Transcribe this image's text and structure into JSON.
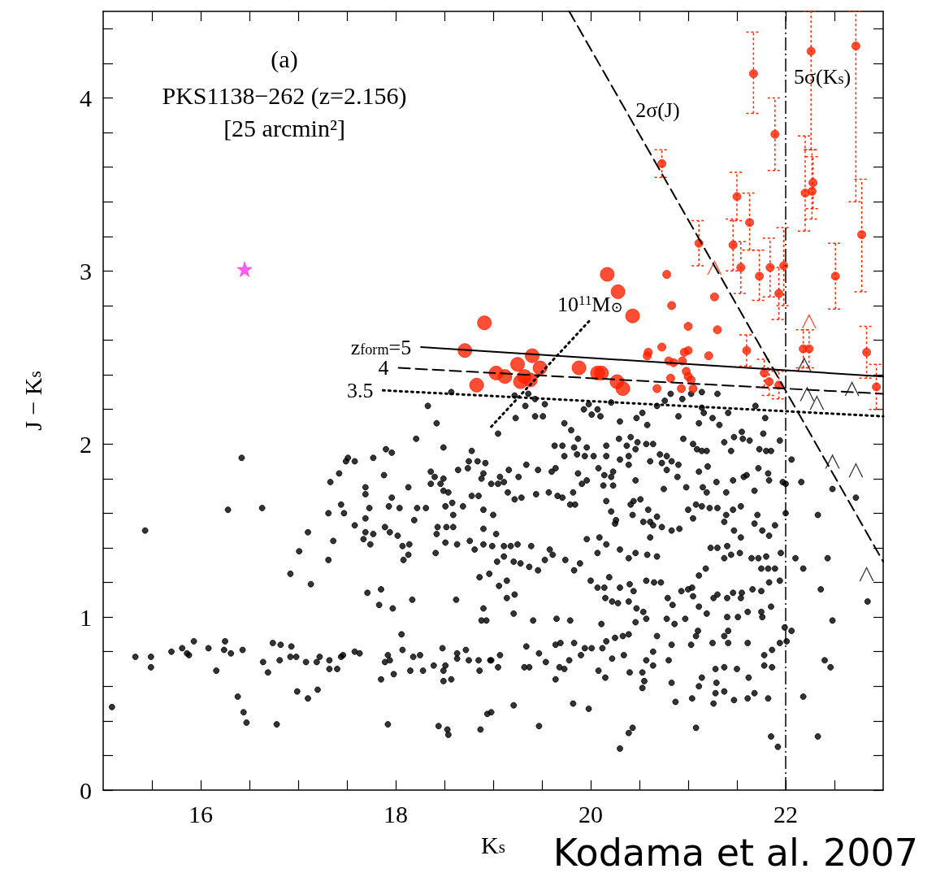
{
  "chart_data": {
    "type": "scatter",
    "title": "(a)",
    "subtitle": "PKS1138−262 (z=2.156)\n[25 arcmin²]",
    "xlabel": "K$_{s}$",
    "ylabel": "J − K$_{s}$",
    "xlim": [
      15,
      23
    ],
    "xticks": [
      {
        "value": 15.5,
        "label": null
      },
      16,
      {
        "value": 16.5,
        "label": null
      },
      {
        "value": 17,
        "label": null
      },
      {
        "value": 17.5,
        "label": null
      },
      18,
      {
        "value": 18.5,
        "label": null
      },
      {
        "value": 19,
        "label": null
      },
      {
        "value": 19.5,
        "label": null
      },
      20,
      {
        "value": 20.5,
        "label": null
      },
      {
        "value": 21,
        "label": null
      },
      {
        "value": 21.5,
        "label": null
      },
      22,
      {
        "value": 22.5,
        "label": null
      }
    ],
    "ylim": [
      0,
      4.5
    ],
    "yticks": [
      0,
      {
        "value": 0.2,
        "label": null
      },
      {
        "value": 0.4,
        "label": null
      },
      {
        "value": 0.6,
        "label": null
      },
      {
        "value": 0.8,
        "label": null
      },
      1,
      {
        "value": 1.2,
        "label": null
      },
      {
        "value": 1.4,
        "label": null
      },
      {
        "value": 1.6,
        "label": null
      },
      {
        "value": 1.8,
        "label": null
      },
      2,
      {
        "value": 2.2,
        "label": null
      },
      {
        "value": 2.4,
        "label": null
      },
      {
        "value": 2.6,
        "label": null
      },
      {
        "value": 2.8,
        "label": null
      },
      3,
      {
        "value": 3.2,
        "label": null
      },
      {
        "value": 3.4,
        "label": null
      },
      {
        "value": 3.6,
        "label": null
      },
      {
        "value": 3.8,
        "label": null
      },
      4,
      {
        "value": 4.2,
        "label": null
      },
      {
        "value": 4.4,
        "label": null
      }
    ],
    "grid": false,
    "legend": false,
    "series": [
      {
        "marker": "circle",
        "color": "#000000",
        "x": [
          16.42,
          16.28,
          16.63,
          15.43,
          17.1,
          17.01,
          16.92,
          17.13,
          17.36,
          17.31,
          17.33,
          17.42,
          17.49,
          17.58,
          17.51,
          17.77,
          17.9,
          17.96,
          17.88,
          17.69,
          17.69,
          17.44,
          17.47,
          17.31,
          17.69,
          17.73,
          17.58,
          17.69,
          17.77,
          17.67,
          17.74,
          17.89,
          17.94,
          18.02,
          17.96,
          17.93,
          18.04,
          18.22,
          18.31,
          18.13,
          18.19,
          18.14,
          18.07,
          18.13,
          18.08,
          18.41,
          18.36,
          18.4,
          18.49,
          18.36,
          18.46,
          18.49,
          18.54,
          18.49,
          18.78,
          18.75,
          18.84,
          18.92,
          18.64,
          18.74,
          18.9,
          18.88,
          18.78,
          18.85,
          18.51,
          18.58,
          18.69,
          18.59,
          18.43,
          18.52,
          18.59,
          18.42,
          18.51,
          18.63,
          18.76,
          18.81,
          18.9,
          18.9,
          18.9,
          18.86,
          17.83,
          17.97,
          17.71,
          17.85,
          18.17,
          18.62,
          18.9,
          18.88,
          18.93,
          18.06,
          15.33,
          15.49,
          15.49,
          15.7,
          15.81,
          15.86,
          15.88,
          15.93,
          16.08,
          16.25,
          16.24,
          16.31,
          16.43,
          16.16,
          16.74,
          16.82,
          16.93,
          16.64,
          16.81,
          16.69,
          16.92,
          16.98,
          17.08,
          17.19,
          17.22,
          17.32,
          17.44,
          17.46,
          17.32,
          17.4,
          17.58,
          17.63,
          17.92,
          17.94,
          17.89,
          18.07,
          18.18,
          18.25,
          17.85,
          17.98,
          18.15,
          18.28,
          18.39,
          18.51,
          18.49,
          18.48,
          18.63,
          18.72,
          18.63,
          18.75,
          18.85,
          18.97,
          18.86,
          18.49,
          18.57,
          16.38,
          16.44,
          16.47,
          16.78,
          15.09,
          16.99,
          17.1,
          17.2,
          17.92,
          18.44,
          18.53,
          18.54,
          18.87,
          18.94,
          18.33,
          18.42,
          18.21,
          18.57,
          19.22,
          19.36,
          19.43,
          19.33,
          19.53,
          19.23,
          19.43,
          19.51,
          19.05,
          19.98,
          19.93,
          20.01,
          20.07,
          20.1,
          20.21,
          20.3,
          20.47,
          20.53,
          20.58,
          20.68,
          20.82,
          20.76,
          20.94,
          21.03,
          21.14,
          21.3,
          21.14,
          21.16,
          21.41,
          20.9,
          21.11,
          21.25,
          21.32,
          21.69,
          21.79,
          21.77,
          21.94,
          21.47,
          21.55,
          21.56,
          21.63,
          21.37,
          19.73,
          19.8,
          19.63,
          19.71,
          19.83,
          19.96,
          19.87,
          20.16,
          20.29,
          20.37,
          20.46,
          20.41,
          20.48,
          20.57,
          20.64,
          20.95,
          21.05,
          21.14,
          21.19,
          21.09,
          21.44,
          21.73,
          21.8,
          21.85,
          19.73,
          19.86,
          19.94,
          20.03,
          20.16,
          20.3,
          20.39,
          20.71,
          20.78,
          20.73,
          20.83,
          20.9,
          20.78,
          20.61,
          20.39,
          19.34,
          19.6,
          19.64,
          19.46,
          19.16,
          20.08,
          20.23,
          19.87,
          19.91,
          19.96,
          20.14,
          20.21,
          20.13,
          20.23,
          20.46,
          20.89,
          21.11,
          21.2,
          21.29,
          21.46,
          21.57,
          21.6,
          21.72,
          21.82,
          21.83,
          21.97,
          22.0,
          22.06,
          22.16,
          20.75,
          20.98,
          21.15,
          21.19,
          21.39,
          21.68,
          18.98,
          19.05,
          19.11,
          19.26,
          19.07,
          19.15,
          19.22,
          19.29,
          19.44,
          19.57,
          19.66,
          19.71,
          19.79,
          19.84,
          19.82,
          20.16,
          20.21,
          20.44,
          20.51,
          20.41,
          20.59,
          20.68,
          20.26,
          20.25,
          20.43,
          20.54,
          20.61,
          20.64,
          20.61,
          20.73,
          20.83,
          20.91,
          21.0,
          21.08,
          21.05,
          21.14,
          21.22,
          21.3,
          21.39,
          21.46,
          21.54,
          21.37,
          21.47,
          21.54,
          21.71,
          21.68,
          21.76,
          21.83,
          21.89,
          22.0,
          22.33,
          22.43,
          22.48,
          22.72,
          22.84,
          22.36,
          22.48,
          22.4,
          22.46,
          22.18,
          22.33,
          22.1,
          22.18,
          21.95,
          21.99,
          22.06,
          22.01,
          21.85,
          21.92,
          19.0,
          19.03,
          18.99,
          19.11,
          19.18,
          19.25,
          19.39,
          19.58,
          19.61,
          19.53,
          19.74,
          19.83,
          19.89,
          19.04,
          19.11,
          19.21,
          19.28,
          19.37,
          19.46,
          18.96,
          19.06,
          19.14,
          19.22,
          19.14,
          19.96,
          20.09,
          20.16,
          20.07,
          20.0,
          20.07,
          20.14,
          20.19,
          20.15,
          20.22,
          20.28,
          20.3,
          20.4,
          20.44,
          20.39,
          20.47,
          20.54,
          20.3,
          20.39,
          20.46,
          20.58,
          20.68,
          20.57,
          20.65,
          20.72,
          20.79,
          20.84,
          20.93,
          21.0,
          21.04,
          21.05,
          21.11,
          21.19,
          21.11,
          21.18,
          21.23,
          21.3,
          21.4,
          21.3,
          21.26,
          21.4,
          21.46,
          21.54,
          21.55,
          21.37,
          21.44,
          21.53,
          21.65,
          21.72,
          21.8,
          21.75,
          21.82,
          21.89,
          21.66,
          21.75,
          21.83,
          21.94,
          21.75,
          21.76,
          21.85,
          21.61,
          21.51,
          21.4,
          21.41,
          21.37,
          21.25,
          21.41,
          21.61,
          21.78,
          21.86,
          21.94,
          21.28,
          21.37,
          21.5,
          21.62,
          21.78,
          21.86,
          21.29,
          21.14,
          21.11,
          21.28,
          21.37,
          21.47,
          21.61,
          21.68,
          21.82,
          21.26,
          21.04,
          20.87,
          20.83,
          21.03,
          20.83,
          20.64,
          20.57,
          20.64,
          20.8,
          20.78,
          20.86,
          20.97,
          21.08,
          21.1,
          20.68,
          20.46,
          20.57,
          20.11,
          19.79,
          19.65,
          19.41,
          19.21,
          20.33,
          20.39,
          20.25,
          20.16,
          20.12,
          19.94,
          20.01,
          19.9,
          19.83,
          19.64,
          19.69,
          19.78,
          19.68,
          19.73,
          19.64,
          19.54,
          19.47,
          19.32,
          19.37,
          19.34,
          19.07,
          18.98,
          19.05,
          20.08,
          20.15,
          20.22,
          20.34,
          20.4,
          20.53,
          20.55,
          20.53,
          19.21,
          19.82,
          19.98,
          18.98,
          19.47,
          20.43,
          20.39,
          20.3,
          21.08
        ],
        "values": [
          1.92,
          1.62,
          1.63,
          1.5,
          1.49,
          1.38,
          1.25,
          1.19,
          1.44,
          1.33,
          1.78,
          1.83,
          1.9,
          1.9,
          1.92,
          1.92,
          1.97,
          1.95,
          1.82,
          1.75,
          1.71,
          1.65,
          1.6,
          1.6,
          1.57,
          1.63,
          1.53,
          1.49,
          1.48,
          1.45,
          1.42,
          1.52,
          1.49,
          1.47,
          1.69,
          1.64,
          1.63,
          1.63,
          1.63,
          1.75,
          1.56,
          1.42,
          1.41,
          1.36,
          1.33,
          1.37,
          1.84,
          1.81,
          1.8,
          1.77,
          1.77,
          1.73,
          1.72,
          1.98,
          1.96,
          1.9,
          1.9,
          1.89,
          1.85,
          1.86,
          1.83,
          1.8,
          1.7,
          1.7,
          1.64,
          1.66,
          1.64,
          1.59,
          1.52,
          1.52,
          1.52,
          1.48,
          1.43,
          1.42,
          1.44,
          1.39,
          1.42,
          1.51,
          1.62,
          1.23,
          1.07,
          1.05,
          1.14,
          1.16,
          1.1,
          1.1,
          1.05,
          0.98,
          0.98,
          0.9,
          0.77,
          0.77,
          0.71,
          0.8,
          0.82,
          0.79,
          0.78,
          0.86,
          0.82,
          0.86,
          0.81,
          0.79,
          0.81,
          0.69,
          0.85,
          0.84,
          0.83,
          0.74,
          0.75,
          0.68,
          0.77,
          0.77,
          0.74,
          0.74,
          0.77,
          0.75,
          0.77,
          0.78,
          0.7,
          0.7,
          0.8,
          0.79,
          0.78,
          0.75,
          0.74,
          0.81,
          0.77,
          0.78,
          0.64,
          0.67,
          0.69,
          0.69,
          0.72,
          0.72,
          0.69,
          0.82,
          0.79,
          0.81,
          0.76,
          0.75,
          0.75,
          0.75,
          0.69,
          0.63,
          0.64,
          0.54,
          0.45,
          0.39,
          0.38,
          0.48,
          0.57,
          0.53,
          0.58,
          0.38,
          0.37,
          0.35,
          0.32,
          0.35,
          0.44,
          2.22,
          2.12,
          2.03,
          2.3,
          2.28,
          2.29,
          2.26,
          2.22,
          2.23,
          2.15,
          2.16,
          2.16,
          2.06,
          2.23,
          2.2,
          2.17,
          2.2,
          2.16,
          2.24,
          2.13,
          2.15,
          2.18,
          2.11,
          2.22,
          2.29,
          2.25,
          2.26,
          2.29,
          2.3,
          2.29,
          2.21,
          2.18,
          2.18,
          2.16,
          2.12,
          2.15,
          2.11,
          2.22,
          2.15,
          2.06,
          2.02,
          2.04,
          2.07,
          2.03,
          2.02,
          2.01,
          2.12,
          2.08,
          1.99,
          1.99,
          1.98,
          1.98,
          2.03,
          1.99,
          2.03,
          1.99,
          1.97,
          2.04,
          2.01,
          2.0,
          2.0,
          2.03,
          2.0,
          1.96,
          1.96,
          1.97,
          1.96,
          1.97,
          1.96,
          1.96,
          1.93,
          1.94,
          1.93,
          1.93,
          1.93,
          1.91,
          1.93,
          1.94,
          1.93,
          1.89,
          1.9,
          1.88,
          1.85,
          1.9,
          1.88,
          1.88,
          1.84,
          1.86,
          1.85,
          1.85,
          1.86,
          1.84,
          1.83,
          1.77,
          1.79,
          1.82,
          1.81,
          1.76,
          1.76,
          1.79,
          1.81,
          1.84,
          1.87,
          1.78,
          1.79,
          1.81,
          1.82,
          1.86,
          1.83,
          1.79,
          1.78,
          1.77,
          1.91,
          1.78,
          1.74,
          1.75,
          1.75,
          1.72,
          1.72,
          1.73,
          1.77,
          1.77,
          1.78,
          1.81,
          1.81,
          1.72,
          1.68,
          1.69,
          1.71,
          1.72,
          1.7,
          1.69,
          1.65,
          1.65,
          1.72,
          1.67,
          1.61,
          1.67,
          1.68,
          1.65,
          1.62,
          1.58,
          1.56,
          1.54,
          1.59,
          1.55,
          1.55,
          1.53,
          1.46,
          1.52,
          1.5,
          1.51,
          1.62,
          1.65,
          1.57,
          1.64,
          1.63,
          1.63,
          1.59,
          1.62,
          1.64,
          1.55,
          1.5,
          1.46,
          1.59,
          1.54,
          1.5,
          1.47,
          1.53,
          1.6,
          1.59,
          1.34,
          1.74,
          1.69,
          1.09,
          1.16,
          0.98,
          0.75,
          0.71,
          0.54,
          0.31,
          1.34,
          1.28,
          1.37,
          0.94,
          0.92,
          0.86,
          0.31,
          0.25,
          1.59,
          1.48,
          1.41,
          1.41,
          1.41,
          1.42,
          1.41,
          1.39,
          1.36,
          1.33,
          1.33,
          1.27,
          1.31,
          1.32,
          1.35,
          1.32,
          1.31,
          1.29,
          1.27,
          1.25,
          1.18,
          1.21,
          1.13,
          1.11,
          1.45,
          1.46,
          1.42,
          1.37,
          1.21,
          1.17,
          1.17,
          1.23,
          1.11,
          1.09,
          1.08,
          1.17,
          1.19,
          1.15,
          1.09,
          1.05,
          1.03,
          1.39,
          1.34,
          1.37,
          1.36,
          1.35,
          1.21,
          1.2,
          1.2,
          1.11,
          1.07,
          1.15,
          1.16,
          1.17,
          1.12,
          1.06,
          1.02,
          1.24,
          1.28,
          1.4,
          1.4,
          1.41,
          1.13,
          1.11,
          1.11,
          1.14,
          1.11,
          1.14,
          1.34,
          1.36,
          1.37,
          1.34,
          1.34,
          1.35,
          1.28,
          1.28,
          1.28,
          1.16,
          1.15,
          1.2,
          1.21,
          1.03,
          1.0,
          1.06,
          1.03,
          1.0,
          1.0,
          0.92,
          0.89,
          0.85,
          0.85,
          0.85,
          0.78,
          0.81,
          0.85,
          0.7,
          0.71,
          0.7,
          0.65,
          0.72,
          0.71,
          0.62,
          0.65,
          0.6,
          0.56,
          0.57,
          0.52,
          0.53,
          0.56,
          0.53,
          0.5,
          0.53,
          0.51,
          0.84,
          0.84,
          0.62,
          0.8,
          0.75,
          0.72,
          0.75,
          0.99,
          0.96,
          0.99,
          0.89,
          0.92,
          0.89,
          0.97,
          0.99,
          0.96,
          0.98,
          0.99,
          0.98,
          1.02,
          0.89,
          0.9,
          0.88,
          0.86,
          0.82,
          0.82,
          0.82,
          0.78,
          0.85,
          0.84,
          0.85,
          0.75,
          0.71,
          0.7,
          0.64,
          0.74,
          0.79,
          0.71,
          0.71,
          0.83,
          0.78,
          0.75,
          0.71,
          0.69,
          0.65,
          0.76,
          0.78,
          0.68,
          0.68,
          0.63,
          0.59,
          0.49,
          0.5,
          0.47,
          0.45,
          0.37,
          0.36,
          0.33,
          0.24,
          0.36
        ]
      },
      {
        "marker": "circle",
        "color": "#ff2200",
        "x": [
          18.71,
          18.83,
          18.91,
          19.03,
          19.12,
          19.25,
          19.32,
          19.28,
          19.38,
          19.4,
          19.48,
          19.88,
          20.07,
          20.11,
          20.17,
          20.27,
          20.28,
          20.33,
          20.43
        ],
        "values": [
          2.54,
          2.34,
          2.7,
          2.41,
          2.39,
          2.46,
          2.39,
          2.36,
          2.37,
          2.51,
          2.44,
          2.44,
          2.41,
          2.41,
          2.98,
          2.36,
          2.88,
          2.32,
          2.74
        ]
      },
      {
        "marker": "circle",
        "color": "#ff2200",
        "x": [
          21.67,
          21.89,
          22.26,
          22.72,
          21.5,
          21.63,
          22.2,
          22.27,
          22.28,
          22.78,
          21.11,
          21.46,
          21.54,
          21.73,
          21.84,
          21.98,
          22.51,
          21.93,
          22.83,
          22.93,
          21.6,
          22.18,
          22.24,
          21.78,
          21.83,
          21.93,
          20.73,
          20.78,
          20.83,
          21.27,
          21.3,
          21.0,
          21.21,
          20.73,
          20.59,
          20.58,
          20.8,
          20.85,
          20.94,
          21.0,
          20.96,
          20.98,
          21.0,
          21.03,
          20.82,
          20.68,
          20.93,
          21.05
        ],
        "values": [
          4.14,
          3.79,
          4.27,
          4.3,
          3.43,
          3.28,
          3.45,
          3.46,
          3.51,
          3.21,
          3.16,
          3.15,
          3.02,
          2.97,
          3.02,
          3.03,
          2.97,
          2.87,
          2.53,
          2.33,
          2.54,
          2.55,
          2.55,
          2.41,
          2.36,
          2.34,
          3.62,
          2.98,
          2.8,
          2.85,
          2.66,
          2.68,
          2.51,
          2.56,
          2.53,
          2.51,
          2.48,
          2.47,
          2.48,
          2.54,
          2.53,
          2.42,
          2.39,
          2.37,
          2.38,
          2.32,
          2.32,
          2.32
        ],
        "errors": [
          [
            3.91,
            4.38
          ],
          [
            3.58,
            4.0
          ],
          [
            3.7,
            4.5
          ],
          [
            3.4,
            4.5
          ],
          [
            3.29,
            3.57
          ],
          [
            3.12,
            3.45
          ],
          [
            3.23,
            3.78
          ],
          [
            3.3,
            3.7
          ],
          [
            3.36,
            3.66
          ],
          [
            2.88,
            3.53
          ],
          [
            3.03,
            3.29
          ],
          [
            3.0,
            3.3
          ],
          [
            2.87,
            3.17
          ],
          [
            2.83,
            3.12
          ],
          [
            2.85,
            3.19
          ],
          [
            2.8,
            3.25
          ],
          [
            2.78,
            3.16
          ],
          [
            2.72,
            3.02
          ],
          [
            2.38,
            2.68
          ],
          [
            2.2,
            2.46
          ],
          [
            2.45,
            2.63
          ],
          [
            2.44,
            2.66
          ],
          [
            2.44,
            2.66
          ],
          [
            2.33,
            2.49
          ],
          [
            2.28,
            2.44
          ],
          [
            2.26,
            2.42
          ],
          [
            3.54,
            3.7
          ],
          null,
          null,
          null,
          null,
          null,
          null,
          null,
          null,
          null,
          null,
          null,
          null,
          null,
          null,
          null,
          null,
          null,
          null,
          null,
          null,
          null
        ]
      },
      {
        "marker": "star",
        "color": "#ff33ee",
        "x": [
          16.45
        ],
        "values": [
          3.01
        ]
      },
      {
        "marker": "triangle",
        "color": "#ff2200",
        "x": [
          21.27,
          22.24
        ],
        "values": [
          3.02,
          2.71
        ]
      },
      {
        "marker": "triangle",
        "color": "#000000",
        "x": [
          22.19,
          22.68,
          22.22,
          22.32,
          22.48,
          22.72,
          22.83
        ],
        "values": [
          2.46,
          2.32,
          2.29,
          2.24,
          1.9,
          1.85,
          1.25
        ]
      },
      {
        "type": "line",
        "name": "z$_{form}$=5",
        "marker": "none",
        "line_style": "solid",
        "color": "#000000",
        "x": [
          18.26,
          23
        ],
        "values": [
          2.56,
          2.39
        ]
      },
      {
        "type": "line",
        "name": "4",
        "marker": "none",
        "line_style": "dashed",
        "color": "#000000",
        "x": [
          18.03,
          23
        ],
        "values": [
          2.44,
          2.29
        ]
      },
      {
        "type": "line",
        "name": "3.5",
        "marker": "none",
        "line_style": "dotted",
        "color": "#000000",
        "x": [
          17.87,
          23
        ],
        "values": [
          2.31,
          2.16
        ]
      },
      {
        "type": "line",
        "name": "10$^{11}$M$_{⊙}$",
        "marker": "none",
        "line_style": "dotted",
        "color": "#000000",
        "x": [
          18.98,
          20.0
        ],
        "values": [
          2.1,
          2.72
        ]
      },
      {
        "type": "line",
        "name": "2σ(J)",
        "marker": "none",
        "line_style": "dashed",
        "color": "#000000",
        "x": [
          19.78,
          23
        ],
        "values": [
          4.5,
          1.32
        ]
      }
    ],
    "ref_lines": [
      {
        "axis": "x",
        "value": 22,
        "label": "5σ(K$_{s}$)",
        "line_style": "dashed",
        "color": "#000000"
      }
    ],
    "annotations": [
      "Kodama et al. 2007"
    ]
  }
}
